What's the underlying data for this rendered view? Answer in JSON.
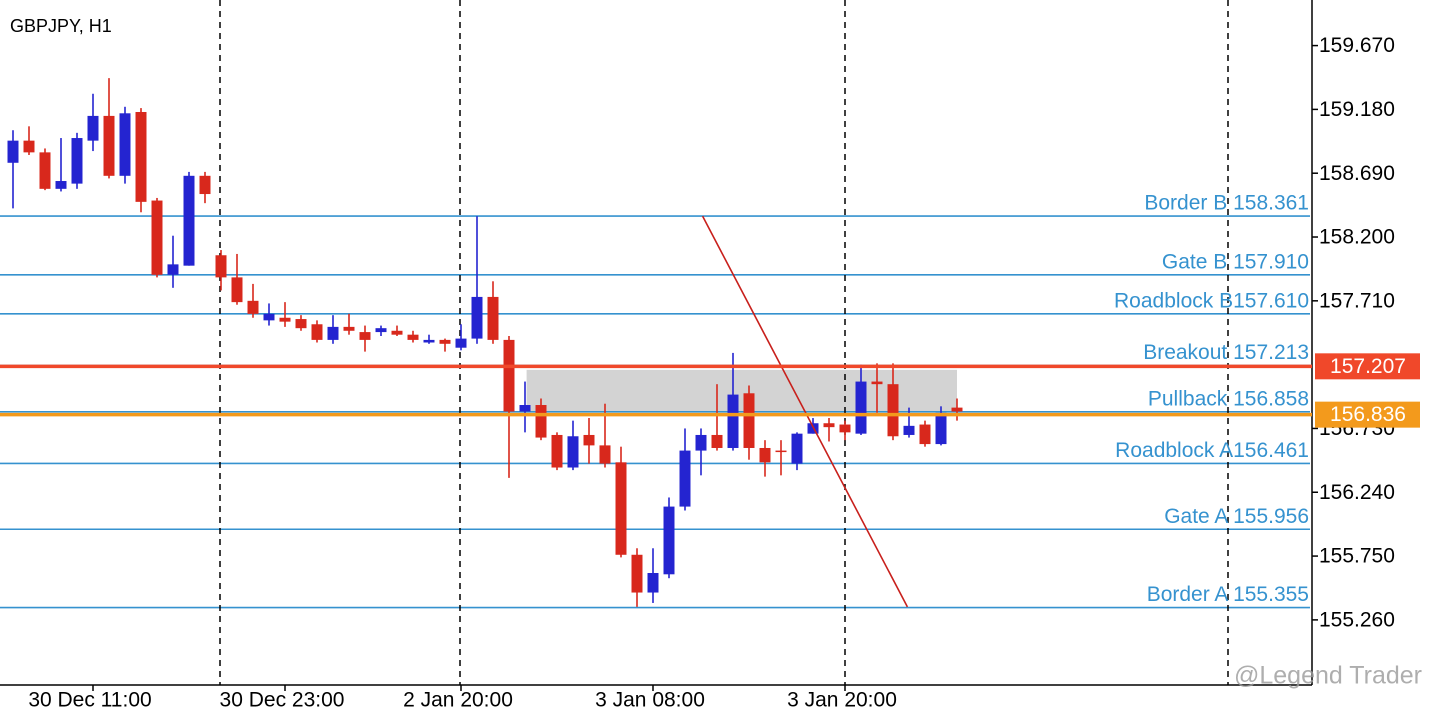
{
  "chart_data": {
    "type": "candlestick",
    "title": "GBPJPY, H1",
    "categories": [
      null,
      null,
      null,
      null,
      null,
      "30 Dec 11:00",
      null,
      null,
      null,
      null,
      null,
      null,
      null,
      null,
      null,
      null,
      null,
      "30 Dec 23:00",
      null,
      null,
      null,
      null,
      null,
      null,
      null,
      null,
      null,
      null,
      "2 Jan 20:00",
      null,
      null,
      null,
      null,
      null,
      null,
      null,
      null,
      null,
      null,
      null,
      "3 Jan 08:00",
      null,
      null,
      null,
      null,
      null,
      null,
      null,
      null,
      null,
      null,
      null,
      "3 Jan 20:00",
      null,
      null,
      null,
      null,
      null,
      null,
      null
    ],
    "open": [
      158.77,
      158.94,
      158.85,
      158.57,
      158.61,
      158.94,
      159.13,
      158.67,
      159.16,
      158.48,
      157.91,
      157.98,
      158.67,
      158.06,
      157.89,
      157.71,
      157.56,
      157.58,
      157.57,
      157.53,
      157.41,
      157.51,
      157.47,
      157.47,
      157.48,
      157.45,
      157.39,
      157.41,
      157.35,
      157.42,
      157.74,
      157.41,
      156.86,
      156.91,
      156.68,
      156.43,
      156.68,
      156.6,
      156.47,
      155.76,
      155.47,
      155.61,
      156.13,
      156.56,
      156.68,
      156.58,
      157.0,
      156.58,
      156.56,
      156.46,
      156.69,
      156.77,
      156.76,
      156.69,
      157.09,
      157.07,
      156.68,
      156.76,
      156.61,
      156.89
    ],
    "high": [
      159.02,
      159.05,
      158.88,
      158.96,
      159.0,
      159.3,
      159.42,
      159.2,
      159.19,
      158.5,
      158.21,
      158.7,
      158.7,
      158.1,
      158.07,
      157.84,
      157.69,
      157.7,
      157.6,
      157.56,
      157.6,
      157.61,
      157.52,
      157.52,
      157.52,
      157.48,
      157.45,
      157.42,
      157.53,
      158.36,
      157.86,
      157.44,
      157.09,
      156.96,
      156.7,
      156.79,
      156.81,
      156.92,
      156.59,
      155.81,
      155.81,
      156.2,
      156.73,
      156.73,
      157.07,
      157.31,
      157.06,
      156.64,
      156.64,
      156.7,
      156.81,
      156.81,
      156.79,
      157.22,
      157.23,
      157.23,
      156.89,
      156.79,
      156.9,
      156.96
    ],
    "low": [
      158.42,
      158.83,
      158.56,
      158.55,
      158.57,
      158.86,
      158.65,
      158.61,
      158.39,
      157.89,
      157.81,
      157.98,
      158.46,
      157.79,
      157.68,
      157.58,
      157.52,
      157.51,
      157.48,
      157.39,
      157.38,
      157.45,
      157.32,
      157.44,
      157.44,
      157.39,
      157.38,
      157.32,
      157.33,
      157.38,
      157.38,
      156.35,
      156.7,
      156.64,
      156.41,
      156.41,
      156.46,
      156.43,
      155.74,
      155.36,
      155.39,
      155.58,
      156.1,
      156.37,
      156.56,
      156.56,
      156.49,
      156.36,
      156.37,
      156.41,
      156.69,
      156.63,
      156.64,
      156.68,
      156.85,
      156.64,
      156.66,
      156.59,
      156.6,
      156.79
    ],
    "close": [
      158.94,
      158.85,
      158.57,
      158.63,
      158.96,
      159.13,
      158.67,
      159.15,
      158.47,
      157.91,
      157.99,
      158.67,
      158.53,
      157.89,
      157.7,
      157.61,
      157.61,
      157.55,
      157.5,
      157.41,
      157.51,
      157.48,
      157.41,
      157.5,
      157.45,
      157.41,
      157.41,
      157.38,
      157.42,
      157.74,
      157.41,
      156.86,
      156.91,
      156.66,
      156.43,
      156.67,
      156.6,
      156.46,
      155.76,
      155.47,
      155.62,
      156.13,
      156.56,
      156.68,
      156.58,
      156.99,
      156.58,
      156.47,
      156.55,
      156.69,
      156.77,
      156.74,
      156.7,
      157.09,
      157.07,
      156.67,
      156.75,
      156.61,
      156.85,
      156.86
    ],
    "up_color": "#2424d0",
    "down_color": "#d8281c",
    "ylim": [
      154.76,
      160.02
    ],
    "yticks": [
      {
        "value": 159.67,
        "label": "159.670"
      },
      {
        "value": 159.18,
        "label": "159.180"
      },
      {
        "value": 158.69,
        "label": "158.690"
      },
      {
        "value": 158.2,
        "label": "158.200"
      },
      {
        "value": 157.71,
        "label": "157.710"
      },
      {
        "value": 156.73,
        "label": "156.730"
      },
      {
        "value": 156.24,
        "label": "156.240"
      },
      {
        "value": 155.75,
        "label": "155.750"
      },
      {
        "value": 155.26,
        "label": "155.260"
      }
    ],
    "levels": [
      {
        "label": "Border B 158.361",
        "value": 158.361
      },
      {
        "label": "Gate B 157.910",
        "value": 157.91
      },
      {
        "label": "Roadblock B157.610",
        "value": 157.61
      },
      {
        "label": "Breakout 157.213",
        "value": 157.213
      },
      {
        "label": "Pullback 156.858",
        "value": 156.858
      },
      {
        "label": "Roadblock A156.461",
        "value": 156.461
      },
      {
        "label": "Gate A 155.956",
        "value": 155.956
      },
      {
        "label": "Border A 155.355",
        "value": 155.355
      }
    ],
    "level_color": "#3592cf",
    "price_markers": [
      {
        "value": 157.207,
        "color": "#f0482a"
      },
      {
        "value": 156.836,
        "color": "#f39a1c"
      }
    ],
    "zone": {
      "x": [
        32.1,
        59
      ],
      "y": [
        157.18,
        156.86
      ],
      "color": "#d3d3d3"
    },
    "trendline": {
      "x": [
        43.1,
        55.9
      ],
      "y": [
        158.36,
        155.36
      ],
      "color": "#c8201c"
    },
    "watermark": "@Legend Trader"
  }
}
